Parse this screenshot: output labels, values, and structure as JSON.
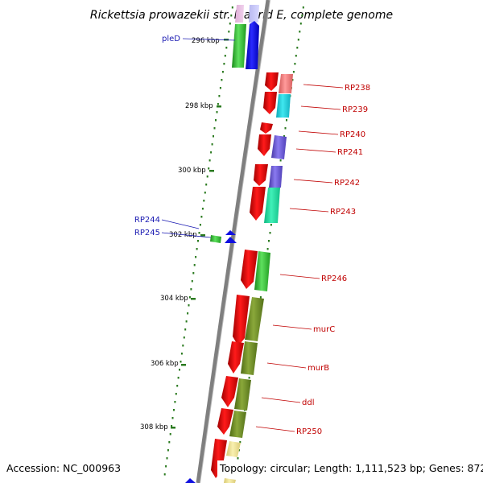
{
  "title": "Rickettsia prowazekii str. Madrid E, complete genome",
  "accession": "Accession: NC_000963",
  "topology": "Topology: circular; Length: 1,111,523 bp; Genes: 872",
  "ticks": [
    "296 kbp",
    "298 kbp",
    "300 kbp",
    "302 kbp",
    "304 kbp",
    "306 kbp",
    "308 kbp"
  ],
  "genes": {
    "left": [
      "pleD",
      "RP244",
      "RP245"
    ],
    "right": [
      "RP238",
      "RP239",
      "RP240",
      "RP241",
      "RP242",
      "RP243",
      "RP246",
      "murC",
      "murB",
      "ddl",
      "RP250"
    ]
  },
  "colors": {
    "backbone": "#7f7f7f",
    "plus_strand_label": "#1a1ab2",
    "minus_strand_label": "#c00000",
    "cds": "#ff0000",
    "dot_track": "#2a7a1f"
  }
}
